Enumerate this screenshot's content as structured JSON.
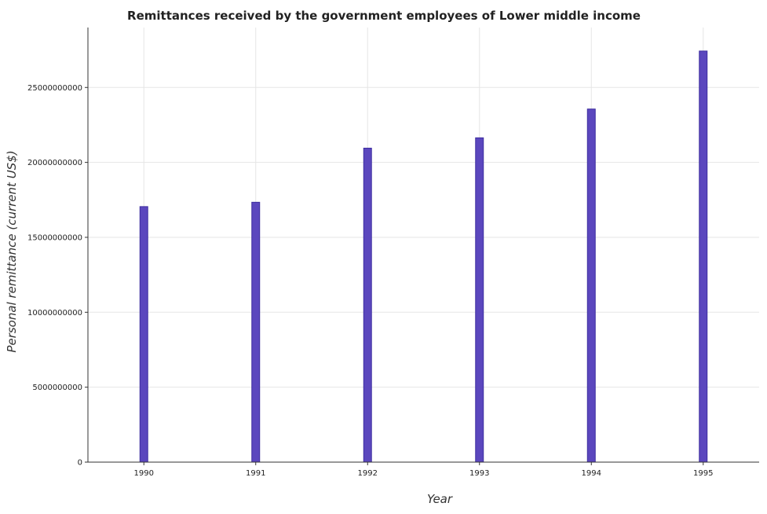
{
  "chart_data": {
    "type": "bar",
    "title": "Remittances received by the government employees of Lower middle income",
    "xlabel": "Year",
    "ylabel": "Personal remittance (current US$)",
    "categories": [
      "1990",
      "1991",
      "1992",
      "1993",
      "1994",
      "1995"
    ],
    "values": [
      17050000000,
      17340000000,
      20950000000,
      21640000000,
      23560000000,
      27430000000
    ],
    "ylim": [
      0,
      29000000000
    ],
    "yticks": [
      0,
      5000000000,
      10000000000,
      15000000000,
      20000000000,
      25000000000
    ],
    "ytick_labels": [
      "0",
      "5000000000",
      "10000000000",
      "15000000000",
      "20000000000",
      "25000000000"
    ],
    "grid": true,
    "bar_color": "#5b47be"
  }
}
